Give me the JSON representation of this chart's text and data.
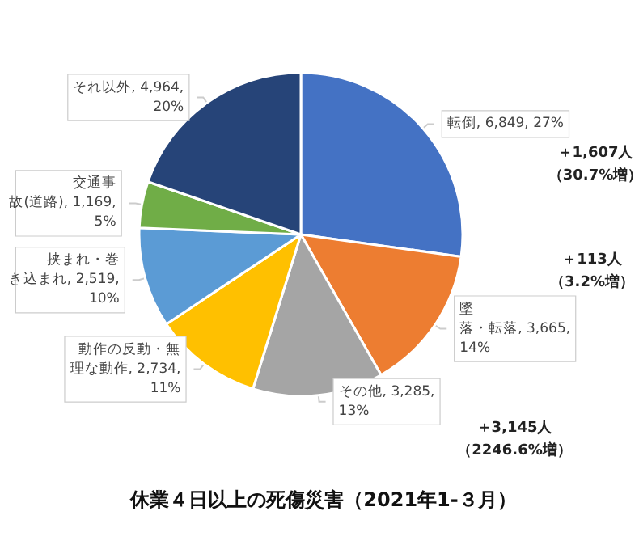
{
  "chart_data": {
    "type": "pie",
    "title": "休業４日以上の死傷災害（2021年1-３月）",
    "categories": [
      "転倒",
      "墜落・転落",
      "その他",
      "動作の反動・無理な動作",
      "挟まれ・巻き込まれ",
      "交通事故(道路)",
      "それ以外"
    ],
    "values": [
      6849,
      3665,
      3285,
      2734,
      2519,
      1169,
      4964
    ],
    "value_labels": [
      "6,849, 27%",
      "3,665, 14%",
      "3,285, 13%",
      "2,734, 11%",
      "2,519, 10%",
      "1,169, 5%",
      "4,964, 20%"
    ],
    "colors": [
      "#4472c4",
      "#ed7d31",
      "#a5a5a5",
      "#ffc000",
      "#5b9bd5",
      "#70ad47",
      "#264478"
    ],
    "annotations": [
      "＋1,607人（30.7%増）",
      "＋113人（3.2%増）",
      "＋3,145人（2246.6%増）"
    ],
    "legend": false
  }
}
